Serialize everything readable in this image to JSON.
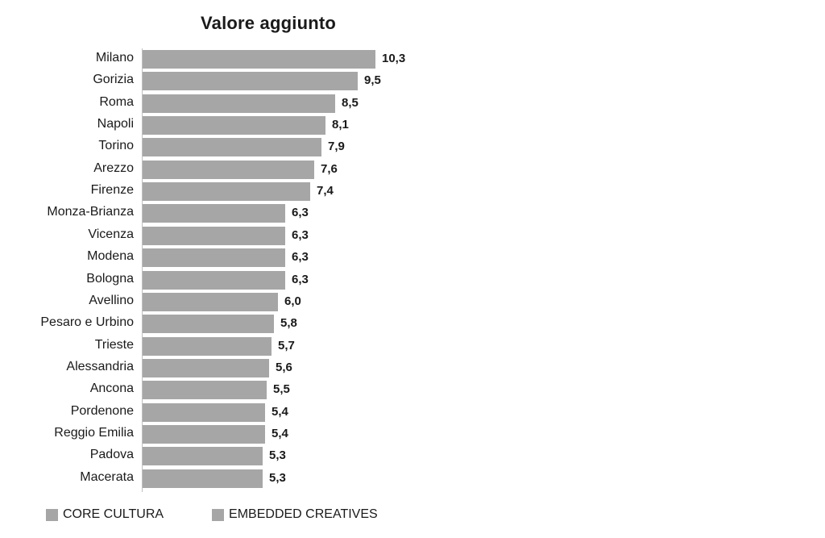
{
  "chart_data": {
    "type": "bar",
    "orientation": "horizontal",
    "title": "Valore aggiunto",
    "categories": [
      "Milano",
      "Gorizia",
      "Roma",
      "Napoli",
      "Torino",
      "Arezzo",
      "Firenze",
      "Monza-Brianza",
      "Vicenza",
      "Modena",
      "Bologna",
      "Avellino",
      "Pesaro e Urbino",
      "Trieste",
      "Alessandria",
      "Ancona",
      "Pordenone",
      "Reggio Emilia",
      "Padova",
      "Macerata"
    ],
    "values": [
      10.3,
      9.5,
      8.5,
      8.1,
      7.9,
      7.6,
      7.4,
      6.3,
      6.3,
      6.3,
      6.3,
      6.0,
      5.8,
      5.7,
      5.6,
      5.5,
      5.4,
      5.4,
      5.3,
      5.3
    ],
    "value_labels": [
      "10,3",
      "9,5",
      "8,5",
      "8,1",
      "7,9",
      "7,6",
      "7,4",
      "6,3",
      "6,3",
      "6,3",
      "6,3",
      "6,0",
      "5,8",
      "5,7",
      "5,6",
      "5,5",
      "5,4",
      "5,4",
      "5,3",
      "5,3"
    ],
    "xlabel": "",
    "ylabel": "",
    "xlim": [
      0,
      11.2
    ],
    "grid": false,
    "data_labels": true,
    "legend_position": "bottom-left",
    "legend": [
      {
        "label": "CORE CULTURA",
        "color": "#a6a6a6"
      },
      {
        "label": "EMBEDDED CREATIVES",
        "color": "#a6a6a6"
      }
    ],
    "bar_color": "#a6a6a6",
    "axis_line_color": "#bfbfbf",
    "text_color": "#1a1a1a",
    "background_color": "#ffffff"
  }
}
